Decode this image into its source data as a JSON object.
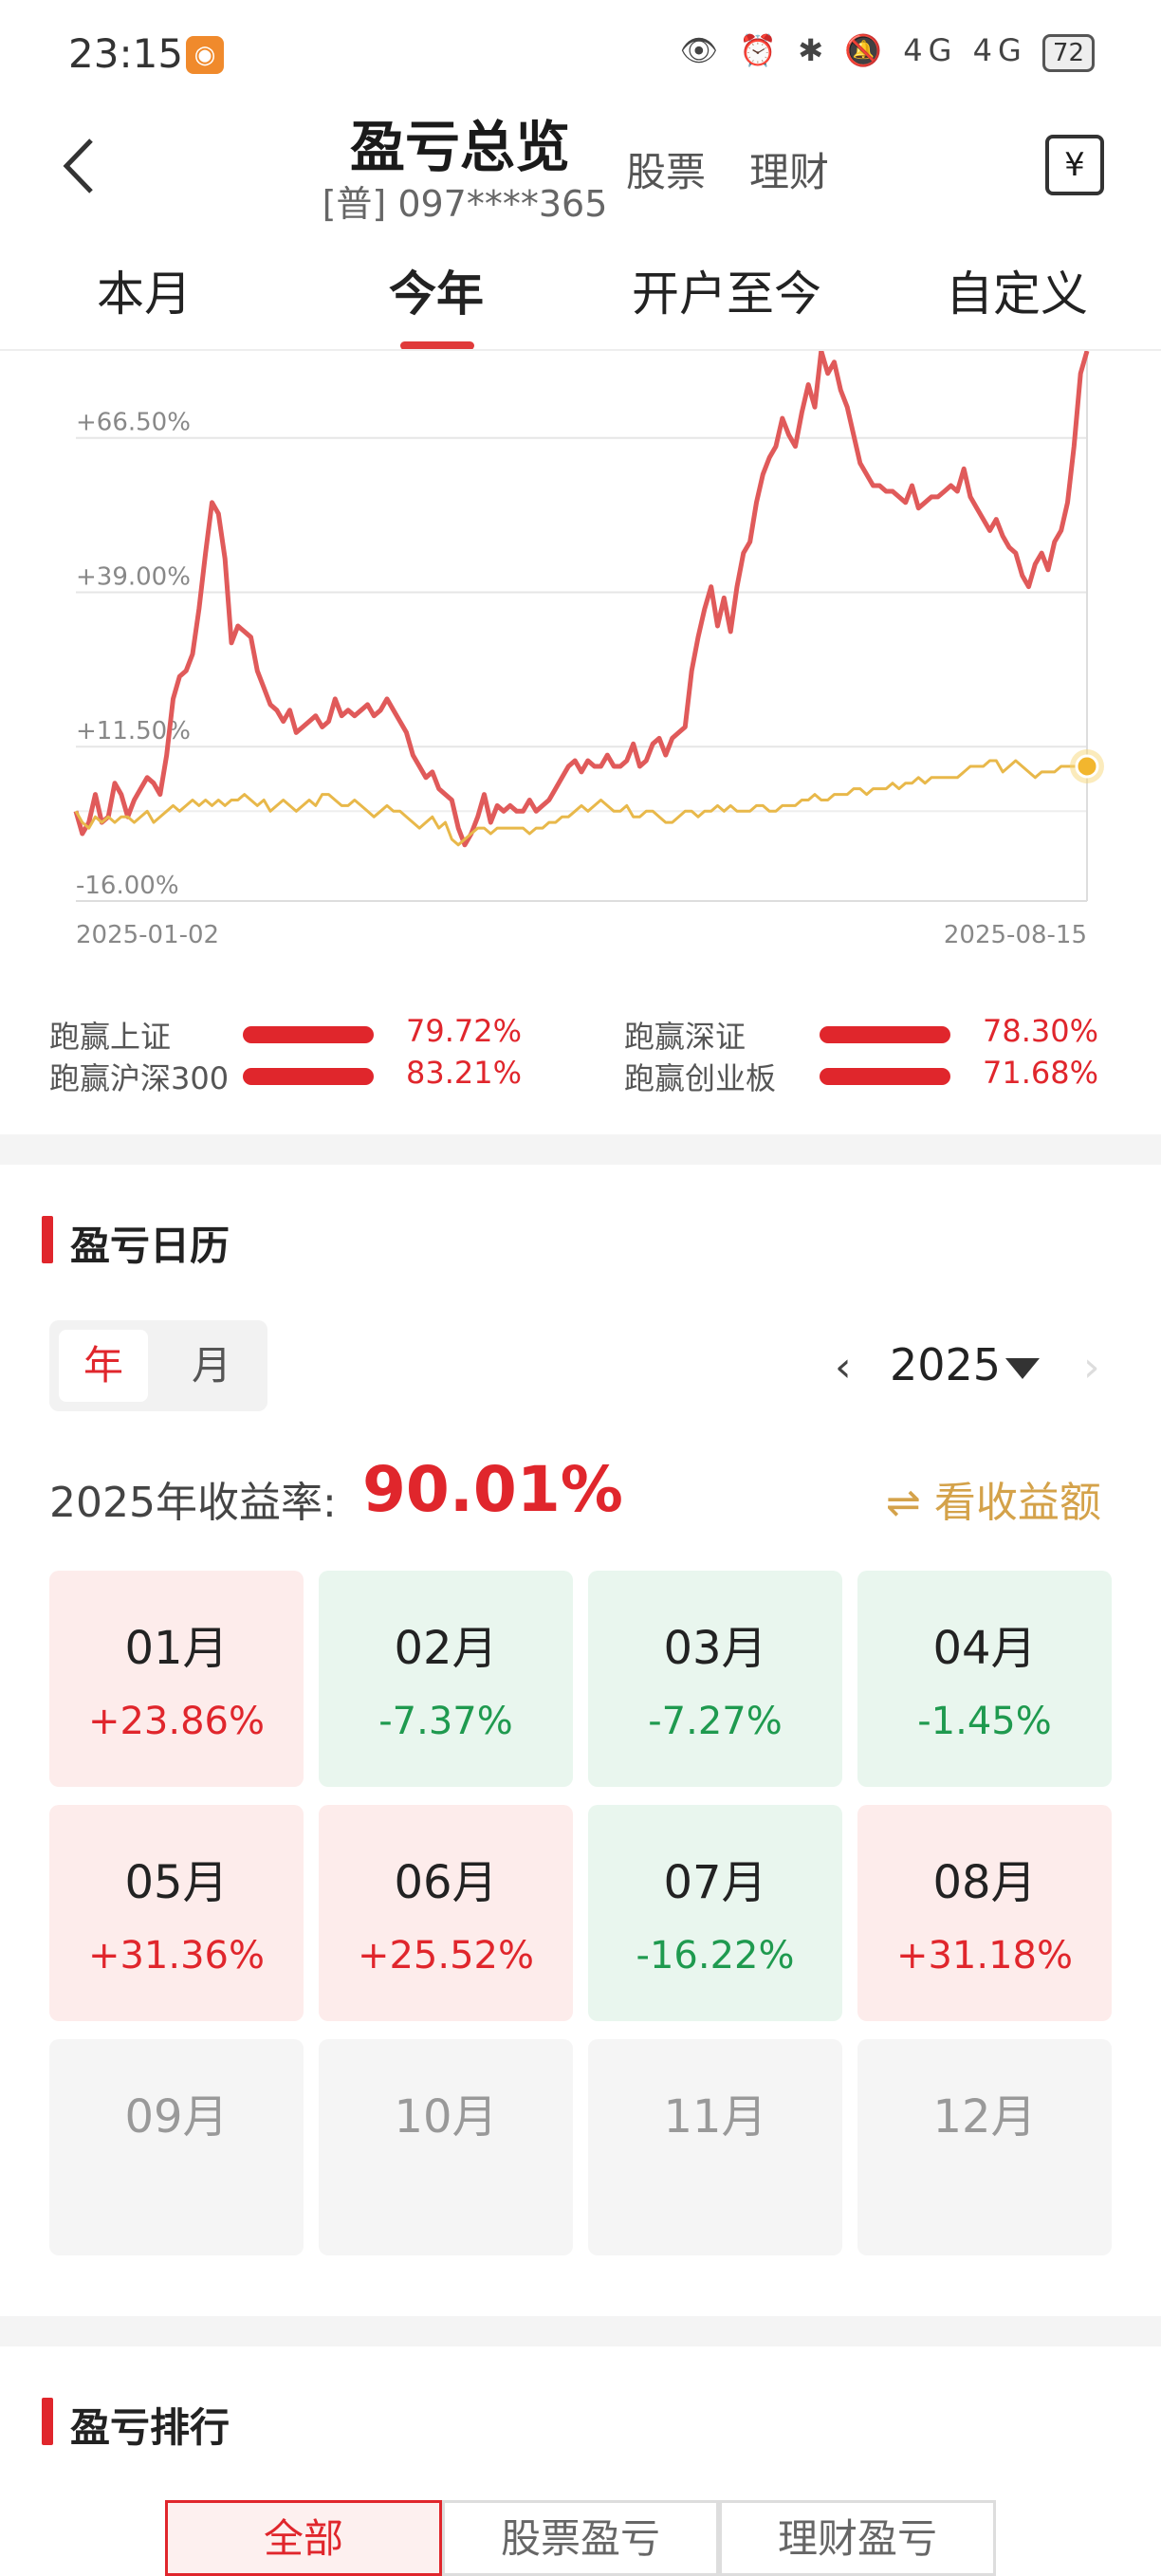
{
  "status_bar": {
    "time": "23:15",
    "app_badge_icon": "app-notification-icon",
    "icons_text": "👁 ⏰ ✱ 🔕 4G 4G",
    "battery": "72"
  },
  "header": {
    "title": "盈亏总览",
    "account": "[普] 097****365",
    "tabs": [
      "股票",
      "理财"
    ],
    "back_icon": "chevron-left-icon",
    "ledger_icon": "yen-ledger-icon",
    "ledger_symbol": "¥"
  },
  "period_tabs": [
    "本月",
    "今年",
    "开户至今",
    "自定义"
  ],
  "chart_data": {
    "type": "line",
    "x_start": "2025-01-02",
    "x_end": "2025-08-15",
    "y_ticks": [
      "+66.50%",
      "+39.00%",
      "+11.50%",
      "-16.00%"
    ],
    "ylim": [
      -16,
      82
    ],
    "series": [
      {
        "color": "#e05a5a",
        "values": [
          0,
          -4,
          -2,
          3,
          -2,
          -1,
          5,
          3,
          -1,
          2,
          4,
          6,
          5,
          3,
          10,
          20,
          24,
          25,
          28,
          36,
          46,
          55,
          53,
          45,
          30,
          33,
          32,
          31,
          25,
          22,
          19,
          18,
          16,
          18,
          14,
          15,
          16,
          17,
          15,
          16,
          20,
          17,
          18,
          17,
          18,
          19,
          17,
          18,
          20,
          18,
          16,
          14,
          10,
          8,
          6,
          7,
          4,
          3,
          2,
          -3,
          -6,
          -4,
          -1,
          3,
          -2,
          1,
          0,
          1,
          0,
          0,
          2,
          0,
          1,
          2,
          4,
          6,
          8,
          9,
          7,
          9,
          8,
          8,
          10,
          8,
          8,
          9,
          12,
          8,
          9,
          12,
          13,
          10,
          13,
          14,
          15,
          25,
          31,
          36,
          40,
          33,
          38,
          32,
          40,
          46,
          48,
          55,
          60,
          63,
          65,
          70,
          67,
          65,
          71,
          76,
          72,
          86,
          78,
          80,
          75,
          72,
          67,
          62,
          60,
          58,
          58,
          57,
          57,
          56,
          55,
          58,
          54,
          55,
          56,
          56,
          57,
          58,
          57,
          61,
          56,
          54,
          52,
          50,
          52,
          49,
          47,
          46,
          42,
          40,
          44,
          46,
          43,
          48,
          50,
          55,
          65,
          78,
          87
        ]
      },
      {
        "color": "#e8b84a",
        "values": [
          0,
          -2,
          -3,
          -1,
          -2,
          -1,
          -2,
          -1,
          -1,
          -2,
          -1,
          0,
          -2,
          -1,
          0,
          1,
          0,
          1,
          2,
          1,
          2,
          1,
          2,
          1,
          2,
          2,
          3,
          2,
          1,
          2,
          0,
          1,
          2,
          1,
          0,
          1,
          2,
          1,
          3,
          3,
          2,
          1,
          1,
          2,
          1,
          0,
          -1,
          0,
          1,
          0,
          0,
          -1,
          -2,
          -3,
          -2,
          -1,
          -3,
          -2,
          -5,
          -6,
          -5,
          -4,
          -3,
          -3,
          -4,
          -3,
          -3,
          -3,
          -3,
          -3,
          -4,
          -3,
          -3,
          -2,
          -2,
          -1,
          -1,
          0,
          1,
          0,
          1,
          2,
          1,
          0,
          0,
          1,
          -1,
          -1,
          0,
          0,
          -1,
          -2,
          -2,
          -1,
          0,
          0,
          -1,
          0,
          0,
          1,
          0,
          1,
          0,
          0,
          0,
          1,
          1,
          0,
          0,
          1,
          1,
          1,
          2,
          2,
          3,
          2,
          2,
          3,
          3,
          3,
          4,
          4,
          3,
          4,
          4,
          4,
          5,
          4,
          5,
          5,
          6,
          5,
          6,
          6,
          6,
          6,
          6,
          7,
          8,
          8,
          8,
          9,
          9,
          7,
          8,
          9,
          8,
          7,
          6,
          7,
          7,
          7,
          8,
          8,
          8,
          8,
          8
        ]
      }
    ]
  },
  "benchmarks": [
    {
      "label": "跑赢上证",
      "value": "79.72%"
    },
    {
      "label": "跑赢深证",
      "value": "78.30%"
    },
    {
      "label": "跑赢沪深300",
      "value": "83.21%"
    },
    {
      "label": "跑赢创业板",
      "value": "71.68%"
    }
  ],
  "calendar": {
    "title": "盈亏日历",
    "mode_year": "年",
    "mode_month": "月",
    "prev_icon": "‹",
    "next_icon": "›",
    "year": "2025",
    "return_label": "2025年收益率:",
    "return_value": "90.01%",
    "toggle_label": "⇌ 看收益额",
    "months": [
      {
        "name": "01月",
        "value": "+23.86%",
        "trend": "up"
      },
      {
        "name": "02月",
        "value": "-7.37%",
        "trend": "down"
      },
      {
        "name": "03月",
        "value": "-7.27%",
        "trend": "down"
      },
      {
        "name": "04月",
        "value": "-1.45%",
        "trend": "down"
      },
      {
        "name": "05月",
        "value": "+31.36%",
        "trend": "up"
      },
      {
        "name": "06月",
        "value": "+25.52%",
        "trend": "up"
      },
      {
        "name": "07月",
        "value": "-16.22%",
        "trend": "down"
      },
      {
        "name": "08月",
        "value": "+31.18%",
        "trend": "up"
      },
      {
        "name": "09月",
        "value": "",
        "trend": "none"
      },
      {
        "name": "10月",
        "value": "",
        "trend": "none"
      },
      {
        "name": "11月",
        "value": "",
        "trend": "none"
      },
      {
        "name": "12月",
        "value": "",
        "trend": "none"
      }
    ]
  },
  "ranking": {
    "title": "盈亏排行",
    "tabs": [
      "全部",
      "股票盈亏",
      "理财盈亏"
    ]
  }
}
